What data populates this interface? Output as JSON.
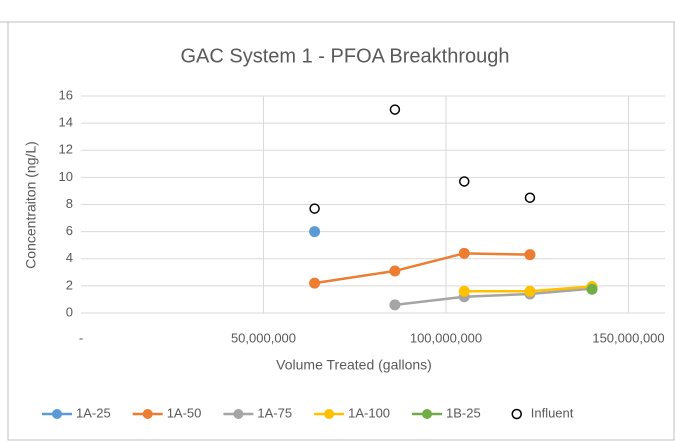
{
  "chart_data": {
    "type": "line",
    "title": "GAC System 1 - PFOA Breakthrough",
    "x_label": "Volume Treated (gallons)",
    "y_label": "Concentraiton (ng/L)",
    "xlim": [
      0,
      160000000
    ],
    "xticks": [
      {
        "value": 0,
        "label": "-"
      },
      {
        "value": 50000000,
        "label": "50,000,000"
      },
      {
        "value": 100000000,
        "label": "100,000,000"
      },
      {
        "value": 150000000,
        "label": "150,000,000"
      }
    ],
    "ylim": [
      0,
      16
    ],
    "yticks": [
      0,
      2,
      4,
      6,
      8,
      10,
      12,
      14,
      16
    ],
    "grid": true,
    "legend": "bottom",
    "series": [
      {
        "name": "1A-25",
        "color": "#5b9bd5",
        "x": [
          64000000
        ],
        "values": [
          6
        ]
      },
      {
        "name": "1A-50",
        "color": "#ed7d31",
        "x": [
          64000000,
          86000000,
          105000000,
          123000000
        ],
        "values": [
          2.2,
          3.1,
          4.4,
          4.3
        ]
      },
      {
        "name": "1A-75",
        "color": "#a5a5a5",
        "x": [
          86000000,
          105000000,
          123000000,
          140000000
        ],
        "values": [
          0.6,
          1.2,
          1.4,
          1.8
        ]
      },
      {
        "name": "1A-100",
        "color": "#ffc000",
        "x": [
          105000000,
          123000000,
          140000000
        ],
        "values": [
          1.6,
          1.6,
          1.95
        ]
      },
      {
        "name": "1B-25",
        "color": "#70ad47",
        "x": [
          140000000
        ],
        "values": [
          1.75
        ]
      },
      {
        "name": "Influent",
        "color": "#000000",
        "marker": "open",
        "x": [
          64000000,
          86000000,
          105000000,
          123000000
        ],
        "values": [
          7.7,
          15,
          9.7,
          8.5
        ]
      }
    ]
  }
}
